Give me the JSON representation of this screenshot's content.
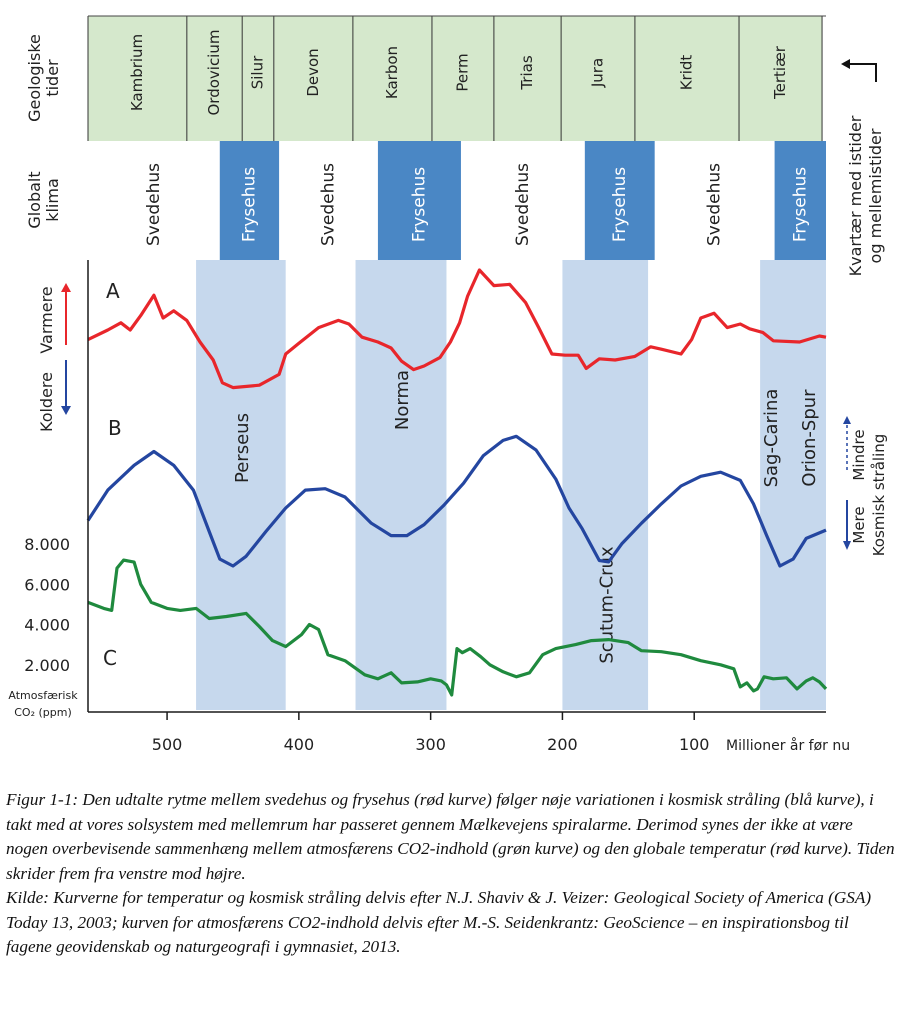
{
  "chart_data": {
    "type": "line",
    "x_axis": {
      "label": "Millioner år før nu",
      "range": [
        560,
        0
      ],
      "ticks": [
        500,
        400,
        300,
        200,
        100
      ],
      "tick_labels": [
        "500",
        "400",
        "300",
        "200",
        "100"
      ]
    },
    "co2_axis": {
      "label_line1": "Atmosfærisk",
      "label_line2": "CO₂ (ppm)",
      "ticks": [
        8000,
        6000,
        4000,
        2000
      ],
      "tick_labels": [
        "8.000",
        "6.000",
        "4.000",
        "2.000"
      ]
    },
    "periods_label": "Geologiske tider",
    "periods": [
      {
        "name": "Kambrium",
        "start": 560,
        "end": 485
      },
      {
        "name": "Ordovicium",
        "start": 485,
        "end": 443
      },
      {
        "name": "Silur",
        "start": 443,
        "end": 419
      },
      {
        "name": "Devon",
        "start": 419,
        "end": 359
      },
      {
        "name": "Karbon",
        "start": 359,
        "end": 299
      },
      {
        "name": "Perm",
        "start": 299,
        "end": 252
      },
      {
        "name": "Trias",
        "start": 252,
        "end": 201
      },
      {
        "name": "Jura",
        "start": 201,
        "end": 145
      },
      {
        "name": "Kridt",
        "start": 145,
        "end": 66
      },
      {
        "name": "Tertiær",
        "start": 66,
        "end": 3
      }
    ],
    "climate_label": "Globalt klima",
    "climate": [
      {
        "label": "Svedehus",
        "start": 560,
        "end": 460,
        "type": "warm"
      },
      {
        "label": "Frysehus",
        "start": 460,
        "end": 415,
        "type": "cold"
      },
      {
        "label": "Svedehus",
        "start": 415,
        "end": 340,
        "type": "warm"
      },
      {
        "label": "Frysehus",
        "start": 340,
        "end": 277,
        "type": "cold"
      },
      {
        "label": "Svedehus",
        "start": 277,
        "end": 183,
        "type": "warm"
      },
      {
        "label": "Frysehus",
        "start": 183,
        "end": 130,
        "type": "cold"
      },
      {
        "label": "Svedehus",
        "start": 130,
        "end": 39,
        "type": "warm"
      },
      {
        "label": "Frysehus",
        "start": 39,
        "end": 0,
        "type": "cold"
      }
    ],
    "spiral_arms": [
      {
        "name": "Perseus",
        "start": 478,
        "end": 410
      },
      {
        "name": "Norma",
        "start": 357,
        "end": 288
      },
      {
        "name": "Scutum-Crux",
        "start": 200,
        "end": 135
      },
      {
        "name": "Sag-Carina",
        "name2": "Orion-Spur",
        "start": 50,
        "end": 0
      }
    ],
    "quaternary_label_line1": "Kvartær med istider",
    "quaternary_label_line2": "og mellemistider",
    "temperature_axis": {
      "up": "Varmere",
      "down": "Koldere"
    },
    "cosmic_axis": {
      "up": "Mindre",
      "down": "Mere",
      "title": "Kosmisk stråling"
    },
    "series": [
      {
        "name": "A",
        "color": "#e8262b",
        "points": [
          [
            560,
            0.42
          ],
          [
            545,
            0.5
          ],
          [
            535,
            0.56
          ],
          [
            528,
            0.5
          ],
          [
            520,
            0.62
          ],
          [
            510,
            0.79
          ],
          [
            503,
            0.6
          ],
          [
            495,
            0.66
          ],
          [
            485,
            0.58
          ],
          [
            475,
            0.4
          ],
          [
            465,
            0.25
          ],
          [
            458,
            0.06
          ],
          [
            450,
            0.02
          ],
          [
            430,
            0.04
          ],
          [
            415,
            0.13
          ],
          [
            410,
            0.3
          ],
          [
            400,
            0.39
          ],
          [
            385,
            0.52
          ],
          [
            370,
            0.58
          ],
          [
            362,
            0.55
          ],
          [
            352,
            0.44
          ],
          [
            340,
            0.4
          ],
          [
            330,
            0.35
          ],
          [
            322,
            0.24
          ],
          [
            313,
            0.17
          ],
          [
            305,
            0.2
          ],
          [
            293,
            0.27
          ],
          [
            285,
            0.4
          ],
          [
            278,
            0.56
          ],
          [
            272,
            0.78
          ],
          [
            263,
            1.0
          ],
          [
            252,
            0.87
          ],
          [
            240,
            0.88
          ],
          [
            228,
            0.73
          ],
          [
            218,
            0.52
          ],
          [
            208,
            0.3
          ],
          [
            198,
            0.29
          ],
          [
            188,
            0.29
          ],
          [
            182,
            0.18
          ],
          [
            172,
            0.26
          ],
          [
            160,
            0.25
          ],
          [
            145,
            0.28
          ],
          [
            133,
            0.36
          ],
          [
            125,
            0.34
          ],
          [
            110,
            0.3
          ],
          [
            102,
            0.42
          ],
          [
            95,
            0.6
          ],
          [
            85,
            0.64
          ],
          [
            75,
            0.52
          ],
          [
            65,
            0.55
          ],
          [
            58,
            0.51
          ],
          [
            48,
            0.48
          ],
          [
            40,
            0.41
          ],
          [
            20,
            0.4
          ],
          [
            5,
            0.45
          ],
          [
            0,
            0.44
          ]
        ]
      },
      {
        "name": "B",
        "color": "#2446a0",
        "points": [
          [
            560,
            0.33
          ],
          [
            545,
            0.55
          ],
          [
            525,
            0.73
          ],
          [
            510,
            0.83
          ],
          [
            495,
            0.73
          ],
          [
            480,
            0.55
          ],
          [
            468,
            0.25
          ],
          [
            460,
            0.05
          ],
          [
            450,
            0.0
          ],
          [
            440,
            0.07
          ],
          [
            425,
            0.25
          ],
          [
            410,
            0.42
          ],
          [
            395,
            0.55
          ],
          [
            380,
            0.56
          ],
          [
            365,
            0.5
          ],
          [
            345,
            0.31
          ],
          [
            330,
            0.22
          ],
          [
            318,
            0.22
          ],
          [
            305,
            0.3
          ],
          [
            290,
            0.44
          ],
          [
            275,
            0.6
          ],
          [
            260,
            0.8
          ],
          [
            245,
            0.91
          ],
          [
            235,
            0.94
          ],
          [
            220,
            0.84
          ],
          [
            205,
            0.63
          ],
          [
            195,
            0.42
          ],
          [
            185,
            0.27
          ],
          [
            172,
            0.04
          ],
          [
            165,
            0.03
          ],
          [
            155,
            0.16
          ],
          [
            140,
            0.31
          ],
          [
            125,
            0.45
          ],
          [
            110,
            0.58
          ],
          [
            95,
            0.65
          ],
          [
            80,
            0.68
          ],
          [
            65,
            0.62
          ],
          [
            55,
            0.45
          ],
          [
            45,
            0.22
          ],
          [
            35,
            0.0
          ],
          [
            25,
            0.05
          ],
          [
            15,
            0.2
          ],
          [
            0,
            0.26
          ]
        ]
      },
      {
        "name": "C",
        "color": "#1f8a3e",
        "values_ppm": [
          [
            560,
            5100
          ],
          [
            548,
            4800
          ],
          [
            542,
            4700
          ],
          [
            538,
            6800
          ],
          [
            533,
            7200
          ],
          [
            525,
            7100
          ],
          [
            520,
            6000
          ],
          [
            512,
            5100
          ],
          [
            500,
            4800
          ],
          [
            490,
            4700
          ],
          [
            478,
            4800
          ],
          [
            468,
            4300
          ],
          [
            455,
            4400
          ],
          [
            440,
            4550
          ],
          [
            430,
            3900
          ],
          [
            420,
            3200
          ],
          [
            410,
            2900
          ],
          [
            398,
            3500
          ],
          [
            392,
            4000
          ],
          [
            385,
            3750
          ],
          [
            378,
            2500
          ],
          [
            365,
            2200
          ],
          [
            350,
            1500
          ],
          [
            340,
            1300
          ],
          [
            330,
            1600
          ],
          [
            322,
            1100
          ],
          [
            310,
            1150
          ],
          [
            300,
            1300
          ],
          [
            292,
            1200
          ],
          [
            288,
            1000
          ],
          [
            284,
            500
          ],
          [
            280,
            2800
          ],
          [
            276,
            2600
          ],
          [
            270,
            2800
          ],
          [
            262,
            2400
          ],
          [
            255,
            2000
          ],
          [
            245,
            1650
          ],
          [
            235,
            1400
          ],
          [
            225,
            1600
          ],
          [
            215,
            2500
          ],
          [
            205,
            2800
          ],
          [
            190,
            3000
          ],
          [
            178,
            3200
          ],
          [
            165,
            3250
          ],
          [
            150,
            3100
          ],
          [
            140,
            2700
          ],
          [
            125,
            2650
          ],
          [
            110,
            2500
          ],
          [
            95,
            2200
          ],
          [
            80,
            2000
          ],
          [
            70,
            1800
          ],
          [
            65,
            900
          ],
          [
            60,
            1100
          ],
          [
            55,
            700
          ],
          [
            52,
            800
          ],
          [
            47,
            1400
          ],
          [
            40,
            1300
          ],
          [
            30,
            1350
          ],
          [
            22,
            800
          ],
          [
            15,
            1200
          ],
          [
            10,
            1350
          ],
          [
            5,
            1150
          ],
          [
            0,
            800
          ]
        ]
      }
    ],
    "caption": [
      "Figur 1-1: Den udtalte rytme mellem svedehus og frysehus (rød kurve) følger nøje variationen i kosmisk stråling (blå kurve), i takt med at vores solsystem med mellemrum har passeret gennem Mælkevejens spiralarme. Derimod synes der ikke at være nogen overbevisende sammenhæng mellem atmosfærens CO2-indhold (grøn kurve) og den globale temperatur (rød kurve). Tiden skrider frem fra venstre mod højre.",
      "Kilde: Kurverne for temperatur og kosmisk stråling delvis efter N.J. Shaviv & J. Veizer: Geological Society of America (GSA) Today 13, 2003; kurven for atmosfærens CO2-indhold delvis efter M.-S. Seidenkrantz: GeoScience – en inspirationsbog til fagene geovidenskab og naturgeografi i gymnasiet, 2013."
    ],
    "colors": {
      "period_fill": "#d5e8cc",
      "frysehus_fill": "#4a87c5",
      "spiral_band_fill": "#c6d8ed",
      "axis": "#1a1a1a"
    }
  }
}
